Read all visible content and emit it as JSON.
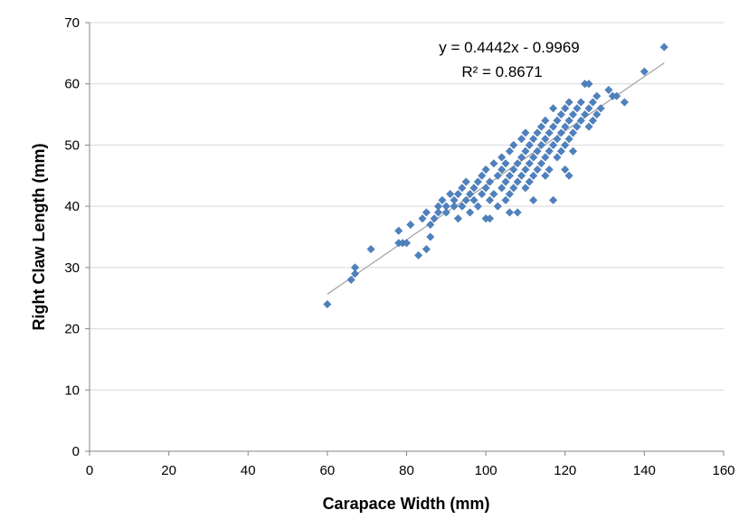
{
  "chart_data": {
    "type": "scatter",
    "title": "",
    "xlabel": "Carapace Width (mm)",
    "ylabel": "Right Claw Length (mm)",
    "xlim": [
      0,
      160
    ],
    "ylim": [
      0,
      70
    ],
    "x_ticks": [
      0,
      20,
      40,
      60,
      80,
      100,
      120,
      140,
      160
    ],
    "y_ticks": [
      0,
      10,
      20,
      30,
      40,
      50,
      60,
      70
    ],
    "grid": "horizontal",
    "legend": "none",
    "marker": "diamond",
    "colors": {
      "points": "#4f81bd",
      "trendline": "#a6a6a6",
      "grid": "#d9d9d9",
      "axis": "#868686"
    },
    "trendline": {
      "type": "linear",
      "slope": 0.4442,
      "intercept": -0.9969,
      "x_range": [
        60,
        145
      ]
    },
    "annotations": {
      "equation": "y = 0.4442x - 0.9969",
      "r_squared": "R² = 0.8671"
    },
    "series": [
      {
        "points": [
          [
            60,
            24
          ],
          [
            66,
            28
          ],
          [
            67,
            29
          ],
          [
            67,
            30
          ],
          [
            71,
            33
          ],
          [
            78,
            34
          ],
          [
            79,
            34
          ],
          [
            78,
            36
          ],
          [
            81,
            37
          ],
          [
            80,
            34
          ],
          [
            83,
            32
          ],
          [
            85,
            33
          ],
          [
            86,
            35
          ],
          [
            84,
            38
          ],
          [
            85,
            39
          ],
          [
            86,
            37
          ],
          [
            87,
            38
          ],
          [
            88,
            39
          ],
          [
            88,
            40
          ],
          [
            89,
            41
          ],
          [
            90,
            40
          ],
          [
            90,
            39
          ],
          [
            91,
            42
          ],
          [
            92,
            40
          ],
          [
            92,
            41
          ],
          [
            93,
            42
          ],
          [
            93,
            38
          ],
          [
            94,
            43
          ],
          [
            94,
            40
          ],
          [
            95,
            41
          ],
          [
            95,
            44
          ],
          [
            96,
            42
          ],
          [
            96,
            39
          ],
          [
            97,
            43
          ],
          [
            97,
            41
          ],
          [
            98,
            44
          ],
          [
            98,
            40
          ],
          [
            99,
            42
          ],
          [
            99,
            45
          ],
          [
            100,
            43
          ],
          [
            100,
            46
          ],
          [
            100,
            38
          ],
          [
            101,
            41
          ],
          [
            101,
            44
          ],
          [
            101,
            38
          ],
          [
            102,
            47
          ],
          [
            102,
            42
          ],
          [
            103,
            45
          ],
          [
            103,
            40
          ],
          [
            104,
            48
          ],
          [
            104,
            43
          ],
          [
            104,
            46
          ],
          [
            105,
            44
          ],
          [
            105,
            41
          ],
          [
            105,
            47
          ],
          [
            106,
            45
          ],
          [
            106,
            49
          ],
          [
            106,
            42
          ],
          [
            106,
            39
          ],
          [
            107,
            46
          ],
          [
            107,
            43
          ],
          [
            107,
            50
          ],
          [
            108,
            47
          ],
          [
            108,
            44
          ],
          [
            108,
            39
          ],
          [
            109,
            48
          ],
          [
            109,
            45
          ],
          [
            109,
            51
          ],
          [
            110,
            46
          ],
          [
            110,
            49
          ],
          [
            110,
            43
          ],
          [
            110,
            52
          ],
          [
            111,
            47
          ],
          [
            111,
            50
          ],
          [
            111,
            44
          ],
          [
            112,
            48
          ],
          [
            112,
            51
          ],
          [
            112,
            45
          ],
          [
            112,
            41
          ],
          [
            113,
            49
          ],
          [
            113,
            52
          ],
          [
            113,
            46
          ],
          [
            114,
            50
          ],
          [
            114,
            53
          ],
          [
            114,
            47
          ],
          [
            115,
            48
          ],
          [
            115,
            51
          ],
          [
            115,
            54
          ],
          [
            115,
            45
          ],
          [
            116,
            49
          ],
          [
            116,
            52
          ],
          [
            116,
            46
          ],
          [
            117,
            50
          ],
          [
            117,
            53
          ],
          [
            117,
            41
          ],
          [
            117,
            56
          ],
          [
            118,
            51
          ],
          [
            118,
            48
          ],
          [
            118,
            54
          ],
          [
            119,
            52
          ],
          [
            119,
            49
          ],
          [
            119,
            55
          ],
          [
            120,
            53
          ],
          [
            120,
            50
          ],
          [
            120,
            56
          ],
          [
            120,
            46
          ],
          [
            121,
            54
          ],
          [
            121,
            51
          ],
          [
            121,
            57
          ],
          [
            121,
            45
          ],
          [
            122,
            55
          ],
          [
            122,
            52
          ],
          [
            122,
            49
          ],
          [
            123,
            56
          ],
          [
            123,
            53
          ],
          [
            124,
            54
          ],
          [
            124,
            57
          ],
          [
            125,
            55
          ],
          [
            125,
            60
          ],
          [
            126,
            56
          ],
          [
            126,
            53
          ],
          [
            126,
            60
          ],
          [
            127,
            57
          ],
          [
            127,
            54
          ],
          [
            128,
            55
          ],
          [
            128,
            58
          ],
          [
            129,
            56
          ],
          [
            131,
            59
          ],
          [
            132,
            58
          ],
          [
            133,
            58
          ],
          [
            135,
            57
          ],
          [
            140,
            62
          ],
          [
            145,
            66
          ]
        ]
      }
    ]
  }
}
